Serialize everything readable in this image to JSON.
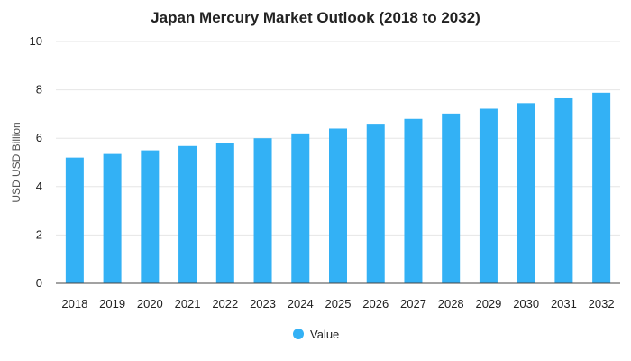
{
  "chart_data": {
    "type": "bar",
    "title": "Japan Mercury Market Outlook (2018 to 2032)",
    "xlabel": "",
    "ylabel": "USD USD Billion",
    "categories": [
      "2018",
      "2019",
      "2020",
      "2021",
      "2022",
      "2023",
      "2024",
      "2025",
      "2026",
      "2027",
      "2028",
      "2029",
      "2030",
      "2031",
      "2032"
    ],
    "series": [
      {
        "name": "Value",
        "values": [
          5.2,
          5.35,
          5.5,
          5.68,
          5.82,
          6.0,
          6.2,
          6.4,
          6.6,
          6.8,
          7.02,
          7.22,
          7.45,
          7.65,
          7.88
        ],
        "color": "#33b1f5"
      }
    ],
    "ylim": [
      0,
      10
    ],
    "yticks": [
      "0",
      "2",
      "4",
      "6",
      "8",
      "10"
    ],
    "grid": true,
    "legend_position": "bottom"
  }
}
